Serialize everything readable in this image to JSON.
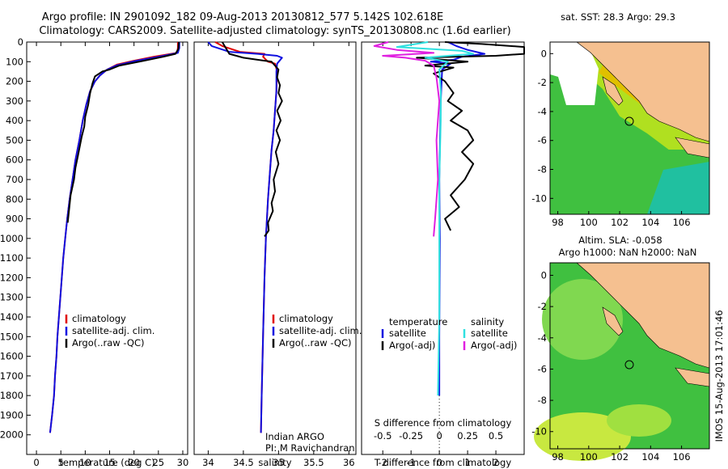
{
  "header": {
    "title_line1": "Argo profile: IN 2901092_182 09-Aug-2013 20130812_577 5.142S 102.618E",
    "title_line2": "Climatology: CARS2009. Satellite-adjusted climatology: synTS_20130808.nc (1.6d earlier)"
  },
  "colors": {
    "climatology": "#e00000",
    "satellite": "#1010e0",
    "argo": "#000000",
    "sal_satellite": "#30e0e0",
    "sal_argo": "#e020e0",
    "land": "#f5c090",
    "ocean_warm": "#50c050",
    "ocean_cool": "#80e040",
    "ocean_hot": "#e0d000"
  },
  "chart_data": [
    {
      "id": "temperature",
      "type": "line",
      "xlabel": "temperature (deg C)",
      "ylabel": "",
      "xlim": [
        -2,
        31
      ],
      "ylim": [
        2100,
        0
      ],
      "xticks": [
        0,
        5,
        10,
        15,
        20,
        25,
        30
      ],
      "yticks": [
        0,
        100,
        200,
        300,
        400,
        500,
        600,
        700,
        800,
        900,
        1000,
        1100,
        1200,
        1300,
        1400,
        1500,
        1600,
        1700,
        1800,
        1900,
        2000
      ],
      "legend": [
        "climatology",
        "satellite-adj. clim.",
        "Argo(..raw -QC)"
      ],
      "legend_loc": "center-left",
      "series": [
        {
          "name": "climatology",
          "color": "#e00000",
          "points": [
            [
              29.0,
              0
            ],
            [
              29.0,
              30
            ],
            [
              28.8,
              55
            ],
            [
              24.0,
              75
            ],
            [
              20.0,
              95
            ],
            [
              16.5,
              115
            ],
            [
              14.5,
              140
            ],
            [
              13.0,
              170
            ],
            [
              12.0,
              200
            ],
            [
              11.0,
              250
            ],
            [
              10.2,
              320
            ],
            [
              9.5,
              400
            ],
            [
              8.8,
              500
            ],
            [
              8.0,
              600
            ],
            [
              7.4,
              700
            ],
            [
              6.8,
              800
            ],
            [
              6.3,
              900
            ],
            [
              5.9,
              1000
            ],
            [
              5.5,
              1100
            ],
            [
              5.2,
              1200
            ],
            [
              4.9,
              1300
            ],
            [
              4.6,
              1400
            ],
            [
              4.3,
              1500
            ],
            [
              4.1,
              1600
            ],
            [
              3.8,
              1700
            ],
            [
              3.6,
              1800
            ],
            [
              3.2,
              1900
            ],
            [
              2.8,
              1990
            ]
          ]
        },
        {
          "name": "satellite-adj. clim.",
          "color": "#1010e0",
          "points": [
            [
              29.3,
              0
            ],
            [
              29.3,
              30
            ],
            [
              29.0,
              55
            ],
            [
              25.0,
              75
            ],
            [
              20.5,
              95
            ],
            [
              16.5,
              118
            ],
            [
              14.5,
              140
            ],
            [
              13.0,
              170
            ],
            [
              12.0,
              200
            ],
            [
              11.0,
              250
            ],
            [
              10.2,
              320
            ],
            [
              9.5,
              400
            ],
            [
              8.8,
              500
            ],
            [
              8.0,
              600
            ],
            [
              7.4,
              700
            ],
            [
              6.8,
              800
            ],
            [
              6.3,
              900
            ],
            [
              5.9,
              1000
            ],
            [
              5.5,
              1100
            ],
            [
              5.2,
              1200
            ],
            [
              4.9,
              1300
            ],
            [
              4.6,
              1400
            ],
            [
              4.3,
              1500
            ],
            [
              4.1,
              1600
            ],
            [
              3.8,
              1700
            ],
            [
              3.6,
              1800
            ],
            [
              3.2,
              1900
            ],
            [
              2.8,
              1990
            ]
          ]
        },
        {
          "name": "Argo(..raw -QC)",
          "color": "#000000",
          "points": [
            [
              29.2,
              0
            ],
            [
              29.1,
              35
            ],
            [
              28.5,
              60
            ],
            [
              26.0,
              75
            ],
            [
              22.0,
              95
            ],
            [
              17.0,
              120
            ],
            [
              15.0,
              140
            ],
            [
              13.5,
              150
            ],
            [
              12.0,
              175
            ],
            [
              11.5,
              210
            ],
            [
              11.0,
              260
            ],
            [
              10.6,
              320
            ],
            [
              10.0,
              380
            ],
            [
              9.8,
              430
            ],
            [
              9.3,
              480
            ],
            [
              8.9,
              530
            ],
            [
              8.5,
              580
            ],
            [
              8.0,
              640
            ],
            [
              7.7,
              700
            ],
            [
              7.0,
              780
            ],
            [
              6.7,
              850
            ],
            [
              6.4,
              920
            ]
          ]
        }
      ]
    },
    {
      "id": "salinity",
      "type": "line",
      "xlabel": "salinity",
      "ylabel": "",
      "xlim": [
        33.8,
        36.1
      ],
      "ylim": [
        2100,
        0
      ],
      "xticks": [
        34,
        34.5,
        35,
        35.5,
        36
      ],
      "yticks": [],
      "legend": [
        "climatology",
        "satellite-adj. clim.",
        "Argo(..raw -QC)"
      ],
      "legend_loc": "center-left",
      "annotations": [
        "Indian ARGO",
        "PI: M Ravichandran"
      ],
      "series": [
        {
          "name": "climatology",
          "color": "#e00000",
          "points": [
            [
              34.1,
              0
            ],
            [
              34.2,
              20
            ],
            [
              34.45,
              50
            ],
            [
              34.8,
              60
            ],
            [
              34.78,
              75
            ],
            [
              34.85,
              100
            ],
            [
              34.95,
              110
            ],
            [
              34.98,
              150
            ],
            [
              34.97,
              250
            ],
            [
              34.95,
              350
            ],
            [
              34.93,
              450
            ],
            [
              34.9,
              550
            ],
            [
              34.88,
              650
            ],
            [
              34.85,
              800
            ],
            [
              34.82,
              1000
            ],
            [
              34.8,
              1200
            ],
            [
              34.78,
              1500
            ],
            [
              34.76,
              1800
            ],
            [
              34.75,
              1990
            ]
          ]
        },
        {
          "name": "satellite-adj. clim.",
          "color": "#1010e0",
          "points": [
            [
              34.0,
              0
            ],
            [
              34.05,
              20
            ],
            [
              34.3,
              50
            ],
            [
              34.7,
              60
            ],
            [
              34.98,
              70
            ],
            [
              35.05,
              80
            ],
            [
              34.98,
              110
            ],
            [
              34.97,
              150
            ],
            [
              34.97,
              250
            ],
            [
              34.95,
              350
            ],
            [
              34.93,
              450
            ],
            [
              34.9,
              550
            ],
            [
              34.88,
              650
            ],
            [
              34.85,
              800
            ],
            [
              34.82,
              1000
            ],
            [
              34.8,
              1200
            ],
            [
              34.78,
              1500
            ],
            [
              34.76,
              1800
            ],
            [
              34.75,
              1990
            ]
          ]
        },
        {
          "name": "Argo(..raw -QC)",
          "color": "#000000",
          "points": [
            [
              34.2,
              0
            ],
            [
              34.25,
              30
            ],
            [
              34.3,
              60
            ],
            [
              34.5,
              80
            ],
            [
              34.7,
              90
            ],
            [
              34.9,
              100
            ],
            [
              35.0,
              140
            ],
            [
              34.98,
              180
            ],
            [
              35.02,
              220
            ],
            [
              35.0,
              260
            ],
            [
              35.05,
              300
            ],
            [
              34.98,
              350
            ],
            [
              35.03,
              400
            ],
            [
              34.97,
              450
            ],
            [
              35.02,
              500
            ],
            [
              34.96,
              560
            ],
            [
              35.0,
              620
            ],
            [
              34.93,
              700
            ],
            [
              34.95,
              760
            ],
            [
              34.9,
              820
            ],
            [
              34.92,
              860
            ],
            [
              34.85,
              920
            ],
            [
              34.86,
              960
            ],
            [
              34.8,
              990
            ]
          ]
        }
      ]
    },
    {
      "id": "difference",
      "type": "line",
      "xlabel": "T difference from climatology",
      "x2label": "S difference from climatology",
      "ylabel": "",
      "xlim": [
        -2.75,
        3.0
      ],
      "ylim": [
        2100,
        0
      ],
      "xticks": [
        -2,
        -1,
        0,
        1,
        2
      ],
      "x2ticks": [
        {
          "label": "-0.5",
          "at": -2
        },
        {
          "label": "-0.25",
          "at": -1
        },
        {
          "label": "0",
          "at": 0
        },
        {
          "label": "0.25",
          "at": 1
        },
        {
          "label": "0.5",
          "at": 2
        }
      ],
      "yticks": [],
      "legend_t_title": "temperature",
      "legend_s_title": "salinity",
      "legend_t": [
        "satellite",
        "Argo(-adj)"
      ],
      "legend_s": [
        "satellite",
        "Argo(-adj)"
      ],
      "legend_loc": "center",
      "series": [
        {
          "name": "T satellite",
          "color": "#1010e0",
          "points": [
            [
              0.3,
              0
            ],
            [
              0.6,
              20
            ],
            [
              1.0,
              40
            ],
            [
              1.6,
              60
            ],
            [
              0.8,
              75
            ],
            [
              0.5,
              90
            ],
            [
              -0.3,
              100
            ],
            [
              0.4,
              110
            ],
            [
              0.1,
              140
            ],
            [
              0.05,
              300
            ],
            [
              0.0,
              700
            ],
            [
              0.02,
              1000
            ],
            [
              0.0,
              1500
            ],
            [
              0.0,
              1800
            ]
          ]
        },
        {
          "name": "T Argo(-adj)",
          "color": "#000000",
          "points": [
            [
              0.2,
              0
            ],
            [
              1.5,
              10
            ],
            [
              3.0,
              25
            ],
            [
              3.0,
              60
            ],
            [
              2.0,
              70
            ],
            [
              0.5,
              75
            ],
            [
              -0.8,
              80
            ],
            [
              1.0,
              100
            ],
            [
              -0.5,
              120
            ],
            [
              0.5,
              130
            ],
            [
              -0.2,
              160
            ],
            [
              0.2,
              200
            ],
            [
              0.5,
              260
            ],
            [
              0.3,
              300
            ],
            [
              0.8,
              350
            ],
            [
              0.4,
              400
            ],
            [
              1.0,
              450
            ],
            [
              1.2,
              500
            ],
            [
              0.8,
              560
            ],
            [
              1.2,
              620
            ],
            [
              0.9,
              700
            ],
            [
              0.4,
              780
            ],
            [
              0.7,
              840
            ],
            [
              0.2,
              900
            ],
            [
              0.4,
              960
            ]
          ]
        },
        {
          "name": "S satellite",
          "color": "#30e0e0",
          "points": [
            [
              -0.4,
              0
            ],
            [
              -1.5,
              25
            ],
            [
              0.8,
              45
            ],
            [
              1.2,
              60
            ],
            [
              0.3,
              70
            ],
            [
              -0.5,
              80
            ],
            [
              0.3,
              100
            ],
            [
              0.0,
              140
            ],
            [
              0.05,
              250
            ],
            [
              0.05,
              400
            ],
            [
              0.0,
              700
            ],
            [
              0.0,
              1000
            ],
            [
              0.0,
              1400
            ],
            [
              -0.05,
              1800
            ]
          ]
        },
        {
          "name": "S Argo(-adj)",
          "color": "#e020e0",
          "points": [
            [
              -1.8,
              0
            ],
            [
              -2.3,
              20
            ],
            [
              -1.5,
              40
            ],
            [
              -0.2,
              55
            ],
            [
              -2.0,
              70
            ],
            [
              -1.2,
              80
            ],
            [
              -0.5,
              95
            ],
            [
              -0.2,
              120
            ],
            [
              -0.1,
              180
            ],
            [
              0.0,
              300
            ],
            [
              -0.1,
              500
            ],
            [
              -0.05,
              700
            ],
            [
              -0.15,
              900
            ],
            [
              -0.2,
              990
            ]
          ]
        }
      ]
    }
  ],
  "maps": {
    "sst_map": {
      "title": "sat. SST: 28.3 Argo: 29.3",
      "xticks": [
        "98",
        "100",
        "102",
        "104",
        "106"
      ],
      "yticks": [
        "0",
        "-2",
        "-4",
        "-6",
        "-8",
        "-10"
      ]
    },
    "sla_map": {
      "title1": "Altim. SLA: -0.058",
      "title2": "Argo h1000: NaN h2000: NaN",
      "xticks": [
        "98",
        "100",
        "102",
        "104",
        "106"
      ],
      "yticks": [
        "0",
        "-2",
        "-4",
        "-6",
        "-8",
        "-10"
      ]
    },
    "credit": "IMOS 15-Aug-2013 17:01:46"
  }
}
